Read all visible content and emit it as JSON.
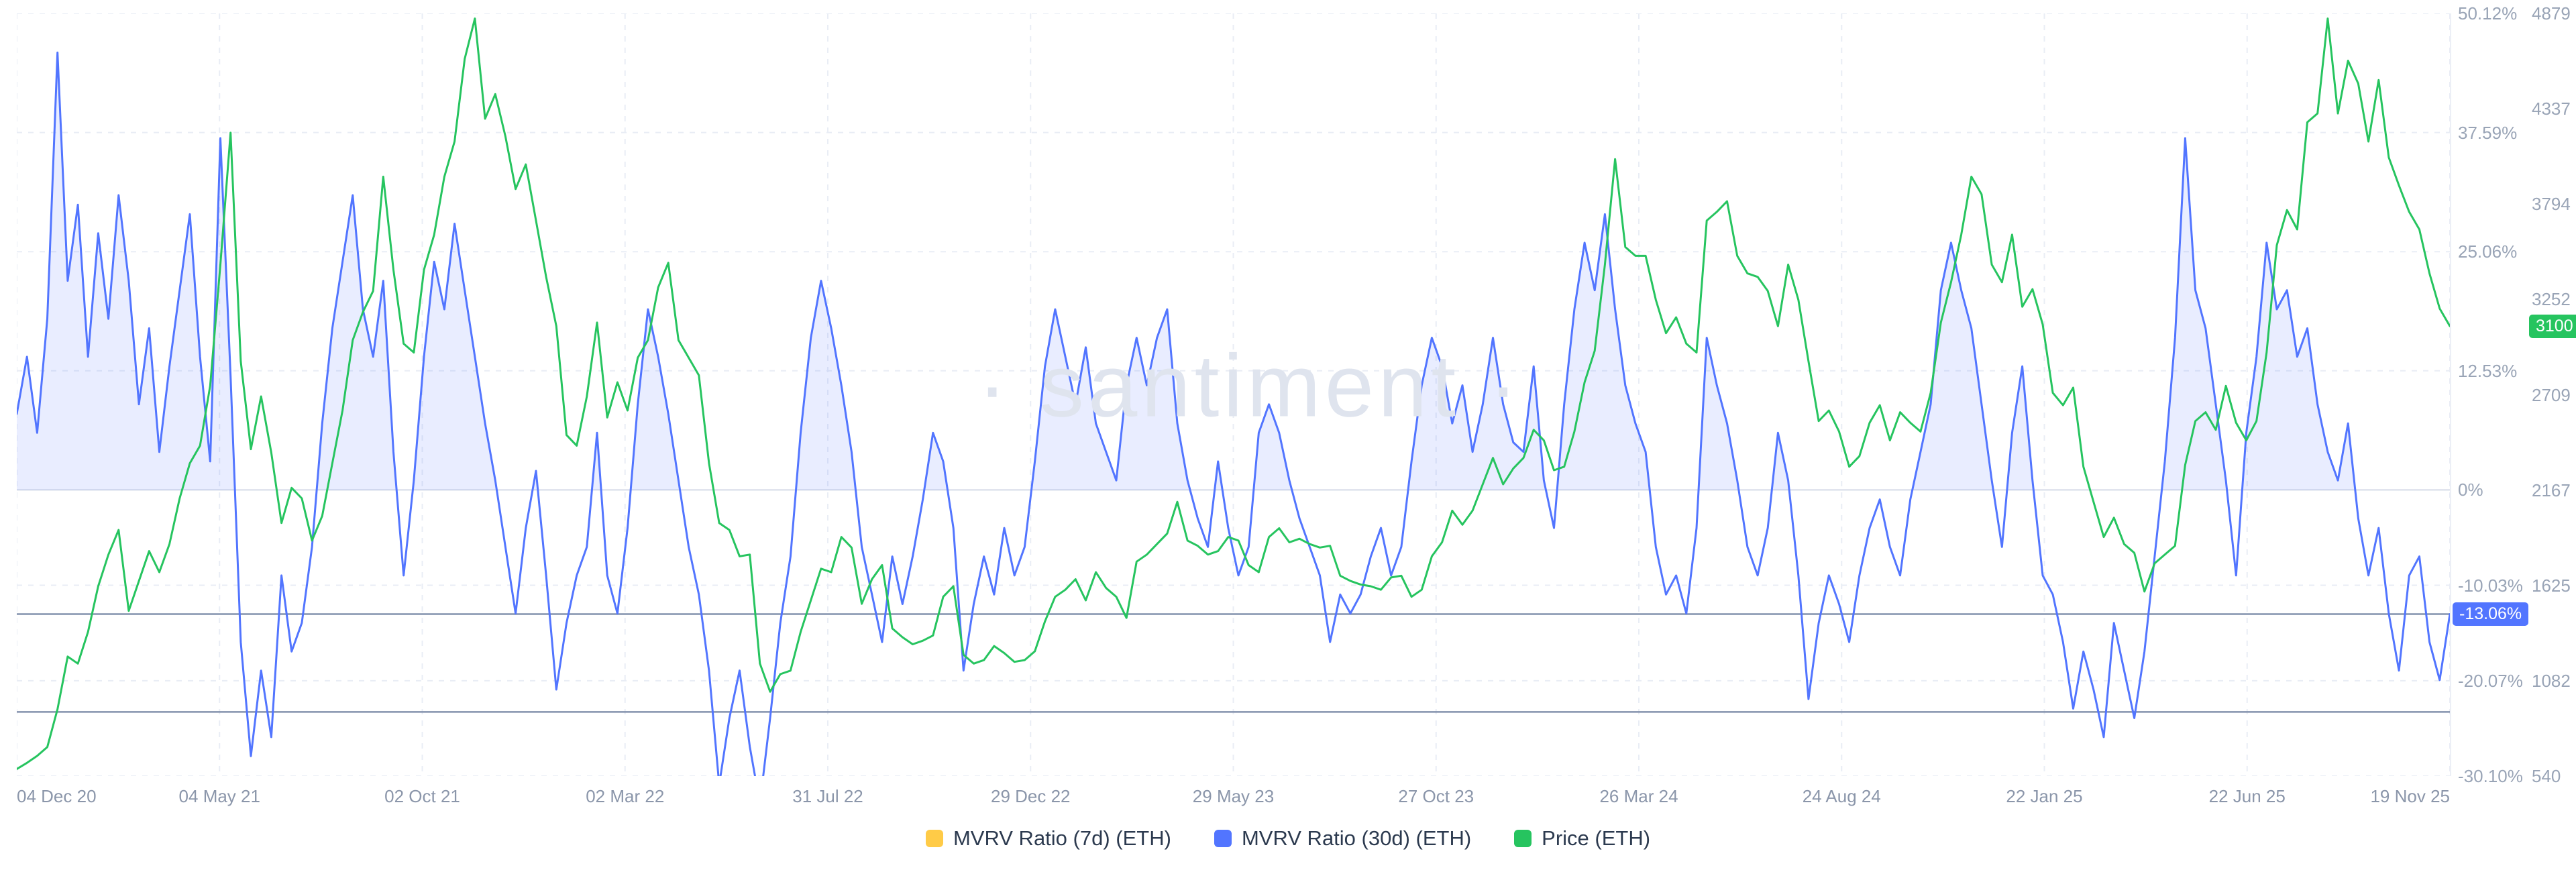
{
  "watermark": "· santiment ·",
  "legend": {
    "items": [
      {
        "label": "MVRV Ratio (7d) (ETH)",
        "color": "#ffcb47"
      },
      {
        "label": "MVRV Ratio (30d) (ETH)",
        "color": "#5275ff"
      },
      {
        "label": "Price (ETH)",
        "color": "#26c45f"
      }
    ]
  },
  "badges": {
    "price": {
      "text": "3100",
      "value": 3100,
      "color": "#26c45f"
    },
    "mvrv_30d": {
      "text": "-13.06%",
      "value": -13.06,
      "color": "#5275ff"
    }
  },
  "chart_data": {
    "type": "line",
    "title": "",
    "x_ticks": [
      "04 Dec 20",
      "04 May 21",
      "02 Oct 21",
      "02 Mar 22",
      "31 Jul 22",
      "29 Dec 22",
      "29 May 23",
      "27 Oct 23",
      "26 Mar 24",
      "24 Aug 24",
      "22 Jan 25",
      "22 Jun 25",
      "19 Nov 25"
    ],
    "percent_axis": {
      "min": -30.1,
      "max": 50.12,
      "ticks": [
        {
          "label": "50.12%",
          "value": 50.12
        },
        {
          "label": "37.59%",
          "value": 37.59
        },
        {
          "label": "25.06%",
          "value": 25.06
        },
        {
          "label": "12.53%",
          "value": 12.53
        },
        {
          "label": "0%",
          "value": 0
        },
        {
          "label": "-10.03%",
          "value": -10.03
        },
        {
          "label": "-20.07%",
          "value": -20.07
        },
        {
          "label": "-30.10%",
          "value": -30.1
        }
      ]
    },
    "price_axis": {
      "min": 540,
      "max": 4879,
      "ticks": [
        {
          "label": "4879",
          "value": 4879
        },
        {
          "label": "4337",
          "value": 4337
        },
        {
          "label": "3794",
          "value": 3794
        },
        {
          "label": "3252",
          "value": 3252
        },
        {
          "label": "2709",
          "value": 2709
        },
        {
          "label": "2167",
          "value": 2167
        },
        {
          "label": "1625",
          "value": 1625
        },
        {
          "label": "1082",
          "value": 1082
        },
        {
          "label": "540",
          "value": 540
        }
      ]
    },
    "reference_lines": [
      {
        "axis": "percent",
        "value": -13.06
      },
      {
        "axis": "percent",
        "value": -23.35
      }
    ],
    "series": [
      {
        "name": "MVRV Ratio (7d) (ETH)",
        "color": "#ffcb47",
        "axis": "percent",
        "visible": false,
        "values": []
      },
      {
        "name": "MVRV Ratio (30d) (ETH)",
        "color": "#5275ff",
        "axis": "percent",
        "visible": true,
        "fill_above_zero": true,
        "values": [
          8,
          14,
          6,
          18,
          46,
          22,
          30,
          14,
          27,
          18,
          31,
          22,
          9,
          17,
          4,
          13,
          21,
          29,
          14,
          3,
          37,
          12,
          -16,
          -28,
          -19,
          -26,
          -9,
          -17,
          -14,
          -6,
          7,
          17,
          24,
          31,
          19,
          14,
          22,
          4,
          -9,
          1,
          14,
          24,
          19,
          28,
          21,
          14,
          7,
          1,
          -6,
          -13,
          -4,
          2,
          -9,
          -21,
          -14,
          -9,
          -6,
          6,
          -9,
          -13,
          -4,
          9,
          19,
          14,
          8,
          1,
          -6,
          -11,
          -19,
          -31,
          -24,
          -19,
          -27,
          -33,
          -24,
          -14,
          -7,
          6,
          16,
          22,
          17,
          11,
          4,
          -6,
          -11,
          -16,
          -7,
          -12,
          -7,
          -1,
          6,
          3,
          -4,
          -19,
          -12,
          -7,
          -11,
          -4,
          -9,
          -6,
          3,
          13,
          19,
          14,
          9,
          15,
          7,
          4,
          1,
          11,
          16,
          11,
          16,
          19,
          7,
          1,
          -3,
          -6,
          3,
          -4,
          -9,
          -6,
          6,
          9,
          6,
          1,
          -3,
          -6,
          -9,
          -16,
          -11,
          -13,
          -11,
          -7,
          -4,
          -9,
          -6,
          3,
          11,
          16,
          13,
          7,
          11,
          4,
          9,
          16,
          9,
          5,
          4,
          13,
          1,
          -4,
          9,
          19,
          26,
          21,
          29,
          19,
          11,
          7,
          4,
          -6,
          -11,
          -9,
          -13,
          -4,
          16,
          11,
          7,
          1,
          -6,
          -9,
          -4,
          6,
          1,
          -9,
          -22,
          -14,
          -9,
          -12,
          -16,
          -9,
          -4,
          -1,
          -6,
          -9,
          -1,
          4,
          9,
          21,
          26,
          21,
          17,
          9,
          1,
          -6,
          6,
          13,
          1,
          -9,
          -11,
          -16,
          -23,
          -17,
          -21,
          -26,
          -14,
          -19,
          -24,
          -17,
          -7,
          3,
          16,
          37,
          21,
          17,
          9,
          1,
          -9,
          6,
          14,
          26,
          19,
          21,
          14,
          17,
          9,
          4,
          1,
          7,
          -3,
          -9,
          -4,
          -13,
          -19,
          -9,
          -7,
          -16,
          -20,
          -13.06
        ]
      },
      {
        "name": "Price (ETH)",
        "color": "#26c45f",
        "axis": "price",
        "visible": true,
        "values": [
          580,
          615,
          655,
          705,
          920,
          1220,
          1180,
          1360,
          1620,
          1800,
          1940,
          1480,
          1650,
          1820,
          1700,
          1860,
          2120,
          2320,
          2420,
          2760,
          3450,
          4200,
          2900,
          2400,
          2700,
          2380,
          1980,
          2180,
          2120,
          1880,
          2020,
          2320,
          2620,
          3020,
          3180,
          3300,
          3950,
          3420,
          3000,
          2950,
          3420,
          3620,
          3950,
          4150,
          4620,
          4850,
          4280,
          4420,
          4180,
          3880,
          4020,
          3700,
          3380,
          3100,
          2480,
          2420,
          2700,
          3120,
          2580,
          2780,
          2620,
          2920,
          3020,
          3320,
          3460,
          3020,
          2920,
          2820,
          2320,
          1980,
          1940,
          1790,
          1800,
          1180,
          1020,
          1120,
          1140,
          1360,
          1540,
          1720,
          1700,
          1900,
          1840,
          1520,
          1660,
          1740,
          1380,
          1330,
          1290,
          1310,
          1340,
          1560,
          1620,
          1230,
          1180,
          1200,
          1280,
          1240,
          1190,
          1200,
          1250,
          1420,
          1560,
          1600,
          1660,
          1540,
          1700,
          1610,
          1560,
          1440,
          1760,
          1800,
          1860,
          1920,
          2100,
          1880,
          1850,
          1800,
          1820,
          1900,
          1880,
          1740,
          1700,
          1900,
          1950,
          1870,
          1890,
          1860,
          1840,
          1850,
          1680,
          1650,
          1630,
          1620,
          1600,
          1670,
          1680,
          1560,
          1600,
          1790,
          1870,
          2050,
          1970,
          2050,
          2200,
          2350,
          2200,
          2290,
          2350,
          2510,
          2450,
          2280,
          2300,
          2500,
          2780,
          2960,
          3450,
          4050,
          3550,
          3500,
          3500,
          3250,
          3060,
          3150,
          3000,
          2950,
          3700,
          3750,
          3810,
          3500,
          3400,
          3380,
          3300,
          3100,
          3450,
          3250,
          2900,
          2560,
          2620,
          2500,
          2300,
          2360,
          2550,
          2650,
          2450,
          2610,
          2550,
          2500,
          2720,
          3120,
          3350,
          3620,
          3950,
          3850,
          3450,
          3350,
          3620,
          3210,
          3310,
          3110,
          2720,
          2650,
          2750,
          2300,
          2100,
          1900,
          2010,
          1860,
          1810,
          1590,
          1750,
          1800,
          1850,
          2310,
          2560,
          2610,
          2510,
          2760,
          2550,
          2450,
          2560,
          2950,
          3560,
          3760,
          3650,
          4260,
          4310,
          4850,
          4310,
          4610,
          4480,
          4150,
          4500,
          4060,
          3900,
          3750,
          3650,
          3400,
          3200,
          3100
        ]
      }
    ],
    "last_values": {
      "mvrv_30d_percent": -13.06,
      "price": 3100
    }
  }
}
